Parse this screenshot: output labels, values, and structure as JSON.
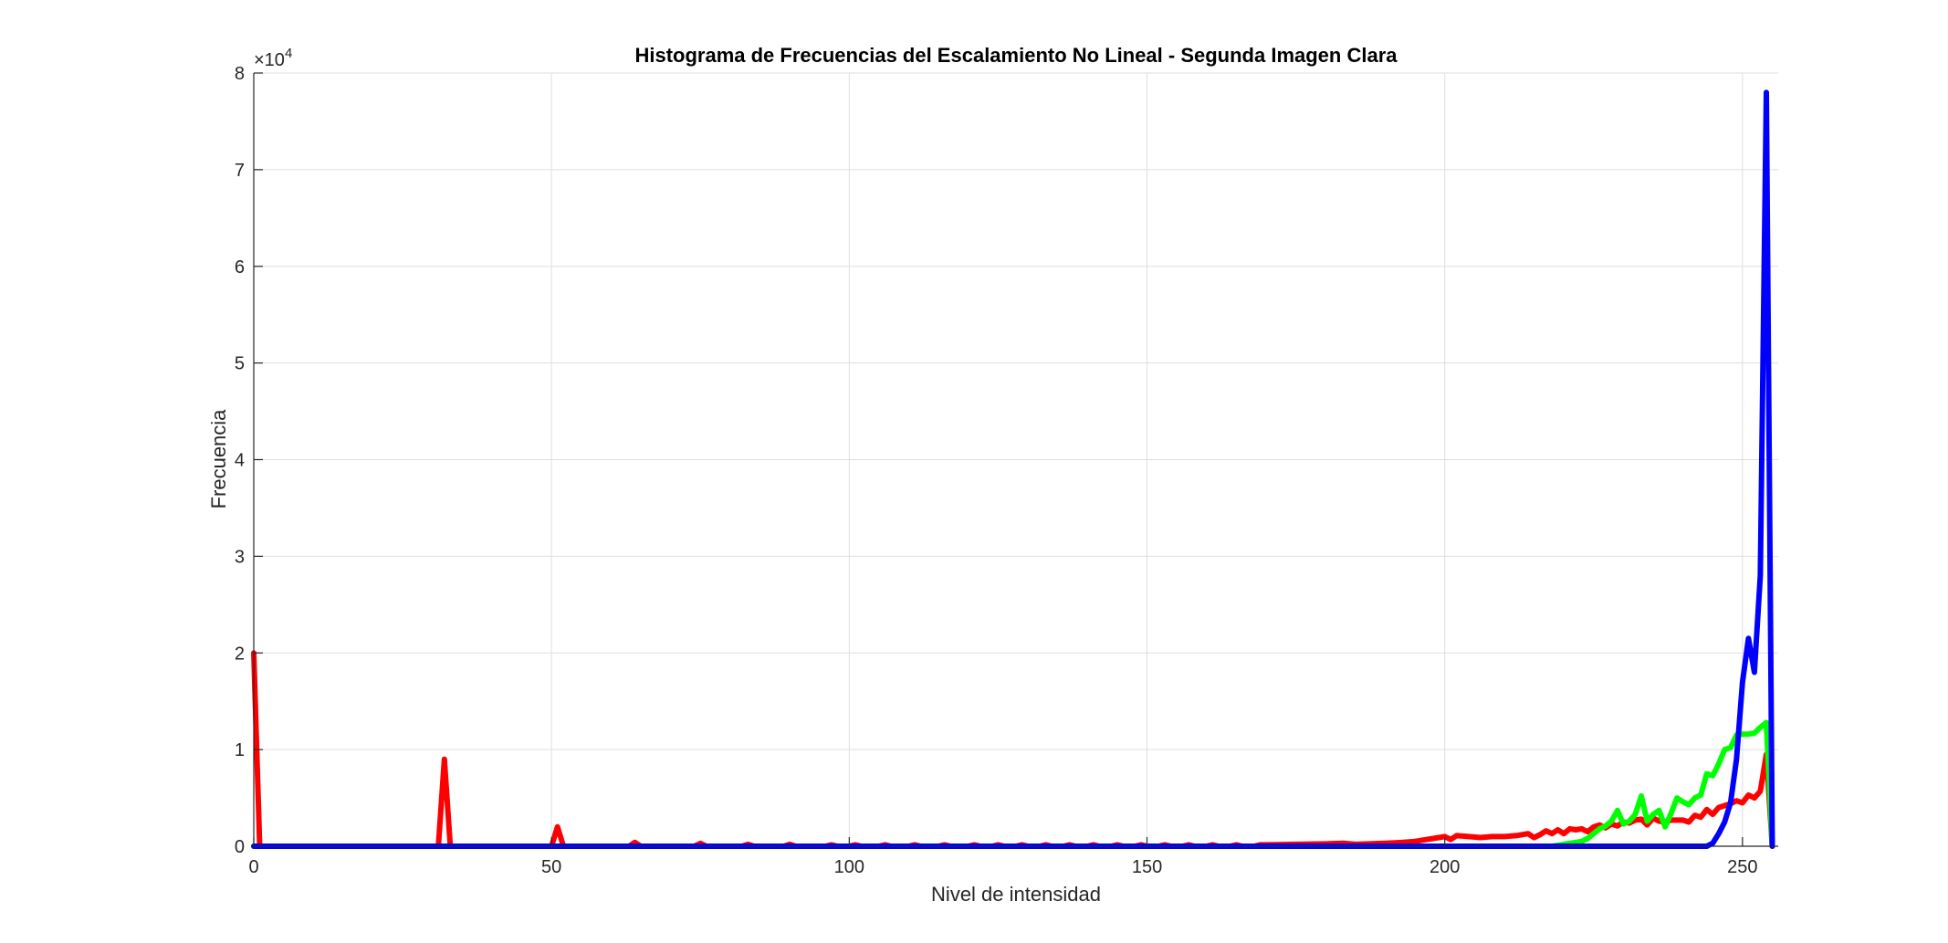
{
  "chart_data": {
    "type": "line",
    "title": "Histograma de Frecuencias del Escalamiento No Lineal - Segunda Imagen Clara",
    "xlabel": "Nivel de intensidad",
    "ylabel": "Frecuencia",
    "y_exponent_label": "×10",
    "y_exponent_power": "4",
    "xlim": [
      0,
      256
    ],
    "ylim": [
      0,
      80000
    ],
    "x_ticks": [
      0,
      50,
      100,
      150,
      200,
      250
    ],
    "y_ticks": [
      0,
      10000,
      20000,
      30000,
      40000,
      50000,
      60000,
      70000,
      80000
    ],
    "x_tick_labels": [
      "0",
      "50",
      "100",
      "150",
      "200",
      "250"
    ],
    "y_tick_labels": [
      "0",
      "1",
      "2",
      "3",
      "4",
      "5",
      "6",
      "7",
      "8"
    ],
    "grid": true,
    "legend": "none",
    "series": [
      {
        "color": "#ff0000",
        "points": [
          [
            0,
            20000
          ],
          [
            1,
            0
          ],
          [
            31,
            0
          ],
          [
            32,
            9000
          ],
          [
            33,
            0
          ],
          [
            50,
            0
          ],
          [
            51,
            2000
          ],
          [
            52,
            0
          ],
          [
            63,
            0
          ],
          [
            64,
            400
          ],
          [
            65,
            0
          ],
          [
            74,
            0
          ],
          [
            75,
            300
          ],
          [
            76,
            0
          ],
          [
            82,
            0
          ],
          [
            83,
            200
          ],
          [
            84,
            0
          ],
          [
            89,
            0
          ],
          [
            90,
            200
          ],
          [
            91,
            0
          ],
          [
            96,
            0
          ],
          [
            97,
            150
          ],
          [
            98,
            0
          ],
          [
            100,
            0
          ],
          [
            101,
            150
          ],
          [
            102,
            0
          ],
          [
            105,
            0
          ],
          [
            106,
            150
          ],
          [
            107,
            0
          ],
          [
            110,
            0
          ],
          [
            111,
            150
          ],
          [
            112,
            0
          ],
          [
            115,
            0
          ],
          [
            116,
            150
          ],
          [
            117,
            0
          ],
          [
            120,
            0
          ],
          [
            121,
            150
          ],
          [
            122,
            0
          ],
          [
            124,
            0
          ],
          [
            125,
            150
          ],
          [
            126,
            0
          ],
          [
            128,
            0
          ],
          [
            129,
            150
          ],
          [
            130,
            0
          ],
          [
            132,
            0
          ],
          [
            133,
            150
          ],
          [
            134,
            0
          ],
          [
            136,
            0
          ],
          [
            137,
            150
          ],
          [
            138,
            0
          ],
          [
            140,
            0
          ],
          [
            141,
            150
          ],
          [
            142,
            0
          ],
          [
            144,
            0
          ],
          [
            145,
            150
          ],
          [
            146,
            0
          ],
          [
            148,
            0
          ],
          [
            149,
            150
          ],
          [
            150,
            0
          ],
          [
            152,
            0
          ],
          [
            153,
            150
          ],
          [
            154,
            0
          ],
          [
            156,
            0
          ],
          [
            157,
            150
          ],
          [
            158,
            0
          ],
          [
            160,
            0
          ],
          [
            161,
            150
          ],
          [
            162,
            0
          ],
          [
            164,
            0
          ],
          [
            165,
            150
          ],
          [
            166,
            0
          ],
          [
            168,
            0
          ],
          [
            169,
            150
          ],
          [
            170,
            150
          ],
          [
            175,
            200
          ],
          [
            180,
            250
          ],
          [
            183,
            300
          ],
          [
            185,
            200
          ],
          [
            190,
            300
          ],
          [
            193,
            400
          ],
          [
            195,
            500
          ],
          [
            197,
            700
          ],
          [
            199,
            900
          ],
          [
            200,
            1000
          ],
          [
            201,
            700
          ],
          [
            202,
            1100
          ],
          [
            204,
            1000
          ],
          [
            206,
            900
          ],
          [
            208,
            1000
          ],
          [
            210,
            1000
          ],
          [
            212,
            1100
          ],
          [
            214,
            1300
          ],
          [
            215,
            900
          ],
          [
            216,
            1200
          ],
          [
            217,
            1600
          ],
          [
            218,
            1300
          ],
          [
            219,
            1700
          ],
          [
            220,
            1300
          ],
          [
            221,
            1800
          ],
          [
            222,
            1700
          ],
          [
            223,
            1800
          ],
          [
            224,
            1500
          ],
          [
            225,
            2000
          ],
          [
            226,
            2200
          ],
          [
            227,
            1900
          ],
          [
            228,
            2300
          ],
          [
            229,
            2100
          ],
          [
            230,
            2500
          ],
          [
            231,
            2400
          ],
          [
            232,
            2700
          ],
          [
            233,
            2800
          ],
          [
            234,
            2200
          ],
          [
            235,
            2900
          ],
          [
            236,
            2600
          ],
          [
            237,
            2500
          ],
          [
            238,
            2700
          ],
          [
            239,
            2700
          ],
          [
            240,
            2700
          ],
          [
            241,
            2500
          ],
          [
            242,
            3200
          ],
          [
            243,
            3000
          ],
          [
            244,
            3800
          ],
          [
            245,
            3300
          ],
          [
            246,
            4000
          ],
          [
            247,
            4200
          ],
          [
            248,
            4400
          ],
          [
            249,
            4700
          ],
          [
            250,
            4500
          ],
          [
            251,
            5300
          ],
          [
            252,
            5000
          ],
          [
            253,
            5700
          ],
          [
            254,
            9500
          ],
          [
            255,
            0
          ]
        ]
      },
      {
        "color": "#00ff00",
        "points": [
          [
            0,
            0
          ],
          [
            218,
            0
          ],
          [
            219,
            100
          ],
          [
            220,
            200
          ],
          [
            221,
            300
          ],
          [
            222,
            400
          ],
          [
            223,
            500
          ],
          [
            224,
            800
          ],
          [
            225,
            1300
          ],
          [
            226,
            1800
          ],
          [
            227,
            2100
          ],
          [
            228,
            2600
          ],
          [
            229,
            3700
          ],
          [
            230,
            2300
          ],
          [
            231,
            2600
          ],
          [
            232,
            3300
          ],
          [
            233,
            5200
          ],
          [
            234,
            2600
          ],
          [
            235,
            3300
          ],
          [
            236,
            3700
          ],
          [
            237,
            2000
          ],
          [
            238,
            3400
          ],
          [
            239,
            5000
          ],
          [
            240,
            4600
          ],
          [
            241,
            4300
          ],
          [
            242,
            5000
          ],
          [
            243,
            5300
          ],
          [
            244,
            7500
          ],
          [
            245,
            7300
          ],
          [
            246,
            8500
          ],
          [
            247,
            10000
          ],
          [
            248,
            10200
          ],
          [
            249,
            11500
          ],
          [
            250,
            11600
          ],
          [
            251,
            11600
          ],
          [
            252,
            11700
          ],
          [
            253,
            12300
          ],
          [
            254,
            12800
          ],
          [
            255,
            0
          ]
        ]
      },
      {
        "color": "#0000ff",
        "points": [
          [
            0,
            0
          ],
          [
            244,
            0
          ],
          [
            245,
            300
          ],
          [
            246,
            1300
          ],
          [
            247,
            2500
          ],
          [
            248,
            4500
          ],
          [
            249,
            9000
          ],
          [
            250,
            17000
          ],
          [
            251,
            21500
          ],
          [
            252,
            18000
          ],
          [
            253,
            28000
          ],
          [
            254,
            78000
          ],
          [
            255,
            0
          ]
        ]
      }
    ]
  }
}
